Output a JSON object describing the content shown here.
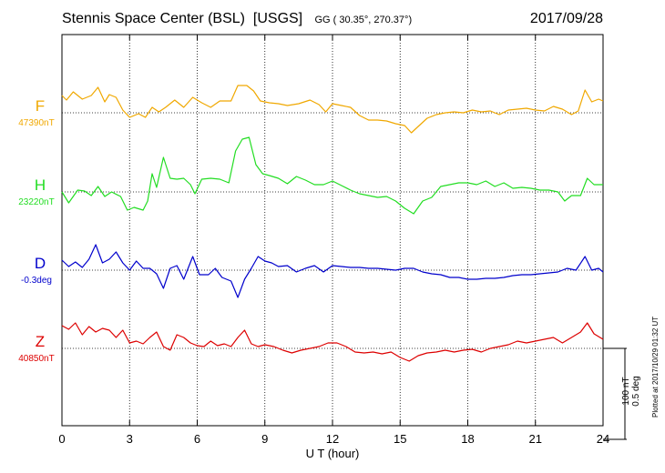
{
  "header": {
    "station": "Stennis Space Center (BSL)",
    "agency": "[USGS]",
    "coords": "GG ( 30.35°, 270.37°)",
    "date": "2017/09/28"
  },
  "footer": {
    "plotted_at": "Plotted at 2017/10/29 01:32 UT"
  },
  "chart_data": {
    "type": "line",
    "xlabel": "U T (hour)",
    "xlim": [
      0,
      24
    ],
    "xticks": [
      0,
      3,
      6,
      9,
      12,
      15,
      18,
      21,
      24
    ],
    "grid": true,
    "scale_bar": {
      "line1": "100 nT",
      "line2": "0.5 deg"
    },
    "series": [
      {
        "name": "F",
        "baseline_label": "47390nT",
        "color": "#f0a800",
        "offset_nT": [
          [
            0,
            0.19
          ],
          [
            0.2,
            0.14
          ],
          [
            0.5,
            0.23
          ],
          [
            0.9,
            0.15
          ],
          [
            1.3,
            0.19
          ],
          [
            1.6,
            0.28
          ],
          [
            1.9,
            0.12
          ],
          [
            2.1,
            0.2
          ],
          [
            2.4,
            0.17
          ],
          [
            2.7,
            0.03
          ],
          [
            3,
            -0.05
          ],
          [
            3.4,
            -0.01
          ],
          [
            3.7,
            -0.05
          ],
          [
            4,
            0.06
          ],
          [
            4.3,
            0.01
          ],
          [
            4.6,
            0.06
          ],
          [
            5,
            0.14
          ],
          [
            5.4,
            0.06
          ],
          [
            5.8,
            0.17
          ],
          [
            6.2,
            0.11
          ],
          [
            6.6,
            0.06
          ],
          [
            7,
            0.13
          ],
          [
            7.5,
            0.13
          ],
          [
            7.8,
            0.3
          ],
          [
            8.2,
            0.3
          ],
          [
            8.5,
            0.24
          ],
          [
            8.8,
            0.13
          ],
          [
            9.2,
            0.11
          ],
          [
            9.6,
            0.1
          ],
          [
            10,
            0.08
          ],
          [
            10.5,
            0.1
          ],
          [
            11,
            0.14
          ],
          [
            11.4,
            0.09
          ],
          [
            11.7,
            0.01
          ],
          [
            12,
            0.1
          ],
          [
            12.4,
            0.08
          ],
          [
            12.8,
            0.06
          ],
          [
            13.2,
            -0.03
          ],
          [
            13.6,
            -0.08
          ],
          [
            14,
            -0.08
          ],
          [
            14.4,
            -0.09
          ],
          [
            14.8,
            -0.12
          ],
          [
            15.2,
            -0.14
          ],
          [
            15.5,
            -0.22
          ],
          [
            15.8,
            -0.15
          ],
          [
            16.2,
            -0.06
          ],
          [
            16.6,
            -0.02
          ],
          [
            17,
            0
          ],
          [
            17.4,
            0.01
          ],
          [
            17.8,
            0
          ],
          [
            18.2,
            0.03
          ],
          [
            18.6,
            0.01
          ],
          [
            19,
            0.02
          ],
          [
            19.4,
            -0.02
          ],
          [
            19.8,
            0.03
          ],
          [
            20.2,
            0.04
          ],
          [
            20.6,
            0.05
          ],
          [
            21,
            0.03
          ],
          [
            21.4,
            0.02
          ],
          [
            21.8,
            0.07
          ],
          [
            22.2,
            0.04
          ],
          [
            22.6,
            -0.02
          ],
          [
            22.9,
            0.02
          ],
          [
            23.2,
            0.25
          ],
          [
            23.5,
            0.12
          ],
          [
            23.8,
            0.15
          ],
          [
            24,
            0.13
          ]
        ]
      },
      {
        "name": "H",
        "baseline_label": "23220nT",
        "color": "#22dd22",
        "offset_nT": [
          [
            0,
            0
          ],
          [
            0.3,
            -0.12
          ],
          [
            0.7,
            0.02
          ],
          [
            1,
            0.01
          ],
          [
            1.3,
            -0.04
          ],
          [
            1.6,
            0.06
          ],
          [
            1.9,
            -0.05
          ],
          [
            2.2,
            0
          ],
          [
            2.6,
            -0.05
          ],
          [
            2.9,
            -0.2
          ],
          [
            3.2,
            -0.17
          ],
          [
            3.6,
            -0.2
          ],
          [
            3.8,
            -0.1
          ],
          [
            4,
            0.2
          ],
          [
            4.2,
            0.05
          ],
          [
            4.5,
            0.38
          ],
          [
            4.8,
            0.15
          ],
          [
            5.1,
            0.14
          ],
          [
            5.4,
            0.15
          ],
          [
            5.7,
            0.08
          ],
          [
            5.9,
            -0.02
          ],
          [
            6.2,
            0.14
          ],
          [
            6.6,
            0.15
          ],
          [
            7,
            0.14
          ],
          [
            7.4,
            0.1
          ],
          [
            7.7,
            0.45
          ],
          [
            8,
            0.58
          ],
          [
            8.3,
            0.6
          ],
          [
            8.6,
            0.3
          ],
          [
            8.9,
            0.2
          ],
          [
            9.2,
            0.18
          ],
          [
            9.6,
            0.15
          ],
          [
            10,
            0.09
          ],
          [
            10.4,
            0.17
          ],
          [
            10.8,
            0.13
          ],
          [
            11.2,
            0.08
          ],
          [
            11.6,
            0.08
          ],
          [
            12,
            0.12
          ],
          [
            12.4,
            0.07
          ],
          [
            12.8,
            0.02
          ],
          [
            13.2,
            -0.02
          ],
          [
            13.6,
            -0.04
          ],
          [
            14,
            -0.06
          ],
          [
            14.4,
            -0.05
          ],
          [
            14.8,
            -0.1
          ],
          [
            15.2,
            -0.18
          ],
          [
            15.6,
            -0.24
          ],
          [
            16,
            -0.1
          ],
          [
            16.4,
            -0.06
          ],
          [
            16.8,
            0.06
          ],
          [
            17.2,
            0.08
          ],
          [
            17.6,
            0.1
          ],
          [
            18,
            0.1
          ],
          [
            18.4,
            0.08
          ],
          [
            18.8,
            0.12
          ],
          [
            19.2,
            0.06
          ],
          [
            19.6,
            0.1
          ],
          [
            20,
            0.04
          ],
          [
            20.4,
            0.05
          ],
          [
            20.8,
            0.04
          ],
          [
            21.2,
            0.02
          ],
          [
            21.6,
            0.02
          ],
          [
            22,
            0
          ],
          [
            22.3,
            -0.1
          ],
          [
            22.6,
            -0.04
          ],
          [
            23,
            -0.04
          ],
          [
            23.3,
            0.15
          ],
          [
            23.6,
            0.08
          ],
          [
            24,
            0.08
          ]
        ]
      },
      {
        "name": "D",
        "baseline_label": "-0.3deg",
        "color": "#0000cc",
        "offset_nT": [
          [
            0,
            0.11
          ],
          [
            0.3,
            0.04
          ],
          [
            0.6,
            0.09
          ],
          [
            0.9,
            0.03
          ],
          [
            1.2,
            0.12
          ],
          [
            1.5,
            0.28
          ],
          [
            1.8,
            0.08
          ],
          [
            2.1,
            0.12
          ],
          [
            2.4,
            0.2
          ],
          [
            2.7,
            0.08
          ],
          [
            3,
            0
          ],
          [
            3.3,
            0.1
          ],
          [
            3.6,
            0.02
          ],
          [
            3.9,
            0.02
          ],
          [
            4.2,
            -0.04
          ],
          [
            4.5,
            -0.2
          ],
          [
            4.8,
            0.02
          ],
          [
            5.1,
            0.05
          ],
          [
            5.4,
            -0.1
          ],
          [
            5.8,
            0.15
          ],
          [
            6.1,
            -0.05
          ],
          [
            6.5,
            -0.05
          ],
          [
            6.8,
            0.02
          ],
          [
            7.1,
            -0.08
          ],
          [
            7.5,
            -0.12
          ],
          [
            7.8,
            -0.3
          ],
          [
            8.1,
            -0.1
          ],
          [
            8.4,
            0.02
          ],
          [
            8.7,
            0.15
          ],
          [
            9,
            0.1
          ],
          [
            9.3,
            0.08
          ],
          [
            9.6,
            0.04
          ],
          [
            10,
            0.05
          ],
          [
            10.4,
            -0.02
          ],
          [
            10.8,
            0.02
          ],
          [
            11.2,
            0.05
          ],
          [
            11.6,
            -0.02
          ],
          [
            12,
            0.05
          ],
          [
            12.4,
            0.04
          ],
          [
            12.8,
            0.03
          ],
          [
            13.2,
            0.03
          ],
          [
            13.6,
            0.02
          ],
          [
            14,
            0.02
          ],
          [
            14.4,
            0.01
          ],
          [
            14.8,
            0
          ],
          [
            15.2,
            0.02
          ],
          [
            15.6,
            0.02
          ],
          [
            16,
            -0.02
          ],
          [
            16.4,
            -0.04
          ],
          [
            16.8,
            -0.05
          ],
          [
            17.2,
            -0.08
          ],
          [
            17.6,
            -0.08
          ],
          [
            18,
            -0.1
          ],
          [
            18.4,
            -0.1
          ],
          [
            18.8,
            -0.09
          ],
          [
            19.2,
            -0.09
          ],
          [
            19.6,
            -0.08
          ],
          [
            20,
            -0.06
          ],
          [
            20.4,
            -0.05
          ],
          [
            20.8,
            -0.05
          ],
          [
            21.2,
            -0.04
          ],
          [
            21.6,
            -0.03
          ],
          [
            22,
            -0.02
          ],
          [
            22.4,
            0.02
          ],
          [
            22.8,
            0
          ],
          [
            23.2,
            0.15
          ],
          [
            23.5,
            0
          ],
          [
            23.8,
            0.02
          ],
          [
            24,
            -0.02
          ]
        ]
      },
      {
        "name": "Z",
        "baseline_label": "40850nT",
        "color": "#dd0000",
        "offset_nT": [
          [
            0,
            0.25
          ],
          [
            0.3,
            0.21
          ],
          [
            0.6,
            0.28
          ],
          [
            0.9,
            0.15
          ],
          [
            1.2,
            0.24
          ],
          [
            1.5,
            0.18
          ],
          [
            1.8,
            0.22
          ],
          [
            2.1,
            0.2
          ],
          [
            2.4,
            0.12
          ],
          [
            2.7,
            0.2
          ],
          [
            3,
            0.06
          ],
          [
            3.3,
            0.08
          ],
          [
            3.6,
            0.05
          ],
          [
            3.9,
            0.12
          ],
          [
            4.2,
            0.18
          ],
          [
            4.5,
            0.02
          ],
          [
            4.8,
            -0.02
          ],
          [
            5.1,
            0.15
          ],
          [
            5.4,
            0.12
          ],
          [
            5.7,
            0.06
          ],
          [
            6,
            0.03
          ],
          [
            6.3,
            0.02
          ],
          [
            6.6,
            0.08
          ],
          [
            6.9,
            0.03
          ],
          [
            7.2,
            0.05
          ],
          [
            7.5,
            0.02
          ],
          [
            7.8,
            0.12
          ],
          [
            8.1,
            0.2
          ],
          [
            8.4,
            0.05
          ],
          [
            8.7,
            0.02
          ],
          [
            9,
            0.04
          ],
          [
            9.4,
            0.02
          ],
          [
            9.8,
            -0.02
          ],
          [
            10.2,
            -0.05
          ],
          [
            10.6,
            -0.02
          ],
          [
            11,
            0
          ],
          [
            11.4,
            0.02
          ],
          [
            11.8,
            0.06
          ],
          [
            12.2,
            0.06
          ],
          [
            12.6,
            0.02
          ],
          [
            13,
            -0.04
          ],
          [
            13.4,
            -0.05
          ],
          [
            13.8,
            -0.04
          ],
          [
            14.2,
            -0.06
          ],
          [
            14.6,
            -0.04
          ],
          [
            15,
            -0.1
          ],
          [
            15.4,
            -0.14
          ],
          [
            15.8,
            -0.08
          ],
          [
            16.2,
            -0.05
          ],
          [
            16.6,
            -0.04
          ],
          [
            17,
            -0.02
          ],
          [
            17.4,
            -0.04
          ],
          [
            17.8,
            -0.02
          ],
          [
            18.2,
            -0.01
          ],
          [
            18.6,
            -0.04
          ],
          [
            19,
            0
          ],
          [
            19.4,
            0.02
          ],
          [
            19.8,
            0.04
          ],
          [
            20.2,
            0.08
          ],
          [
            20.6,
            0.06
          ],
          [
            21,
            0.08
          ],
          [
            21.4,
            0.1
          ],
          [
            21.8,
            0.12
          ],
          [
            22.2,
            0.06
          ],
          [
            22.6,
            0.12
          ],
          [
            23,
            0.18
          ],
          [
            23.3,
            0.28
          ],
          [
            23.6,
            0.16
          ],
          [
            24,
            0.1
          ]
        ]
      }
    ]
  }
}
